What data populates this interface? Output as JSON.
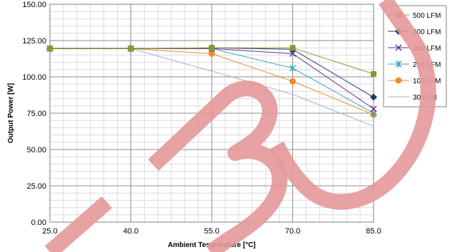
{
  "chart_data": {
    "type": "line",
    "xlabel": "Ambient Temperature [°C]",
    "ylabel": "Output Power [W]",
    "xlim": [
      25,
      85
    ],
    "ylim": [
      0,
      150
    ],
    "x_ticks": [
      "25.0",
      "40.0",
      "55.0",
      "70.0",
      "85.0"
    ],
    "y_ticks": [
      "0.00",
      "25.00",
      "50.00",
      "75.00",
      "100.00",
      "125.00",
      "150.00"
    ],
    "grid": true,
    "legend_position": "right",
    "watermark_color": "#e4989a",
    "series": [
      {
        "name": "500 LFM",
        "color": "#8a9a2a",
        "marker": "square",
        "points": [
          [
            25,
            119.5
          ],
          [
            40,
            119.5
          ],
          [
            55,
            120
          ],
          [
            70,
            120
          ],
          [
            85,
            102
          ]
        ]
      },
      {
        "name": "400 LFM",
        "color": "#1f3a6e",
        "marker": "diamond",
        "points": [
          [
            25,
            119.5
          ],
          [
            40,
            119.5
          ],
          [
            55,
            120
          ],
          [
            70,
            119
          ],
          [
            85,
            86
          ]
        ]
      },
      {
        "name": "300 LFM",
        "color": "#6a2b8c",
        "marker": "x",
        "points": [
          [
            25,
            119.5
          ],
          [
            40,
            119.5
          ],
          [
            55,
            119.5
          ],
          [
            70,
            116
          ],
          [
            85,
            78
          ]
        ]
      },
      {
        "name": "200 LFM",
        "color": "#3aa6b9",
        "marker": "star",
        "points": [
          [
            25,
            119.5
          ],
          [
            40,
            119.5
          ],
          [
            55,
            119.5
          ],
          [
            70,
            106
          ],
          [
            85,
            75
          ]
        ]
      },
      {
        "name": "100 LFM",
        "color": "#f28c28",
        "marker": "circle",
        "points": [
          [
            25,
            119.5
          ],
          [
            40,
            119.5
          ],
          [
            55,
            116
          ],
          [
            70,
            97
          ],
          [
            85,
            74
          ]
        ]
      },
      {
        "name": "30 LFM",
        "color": "#9fb3d6",
        "marker": "none",
        "points": [
          [
            25,
            119.5
          ],
          [
            40,
            119.5
          ],
          [
            55,
            104
          ],
          [
            70,
            88
          ],
          [
            85,
            66
          ]
        ]
      }
    ]
  }
}
